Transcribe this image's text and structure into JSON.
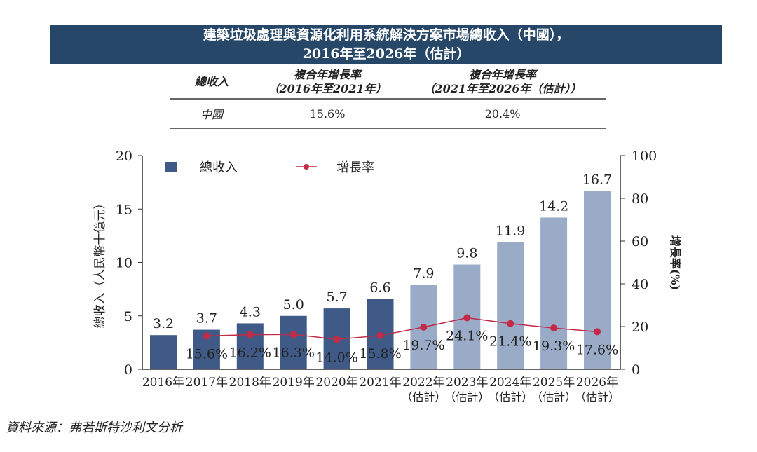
{
  "title_line1": "建築垃圾處理與資源化利用系統解決方案市場總收入（中國），",
  "title_line2": "2016年至2026年（估計）",
  "cagr_table": {
    "headers": [
      "總收入",
      "複合年增長率",
      "（2016年至2021年）",
      "複合年增長率",
      "（2021年至2026年（估計））"
    ],
    "row": {
      "label": "中國",
      "cagr_2016_2021": "15.6%",
      "cagr_2021_2026": "20.4%"
    }
  },
  "chart_data": {
    "type": "bar+line",
    "categories": [
      "2016年",
      "2017年",
      "2018年",
      "2019年",
      "2020年",
      "2021年",
      "2022年",
      "2023年",
      "2024年",
      "2025年",
      "2026年"
    ],
    "category_sublabels": [
      "",
      "",
      "",
      "",
      "",
      "",
      "（估計）",
      "（估計）",
      "（估計）",
      "（估計）",
      "（估計）"
    ],
    "series": [
      {
        "name": "總收入",
        "type": "bar",
        "axis": "left",
        "values": [
          3.2,
          3.7,
          4.3,
          5.0,
          5.7,
          6.6,
          7.9,
          9.8,
          11.9,
          14.2,
          16.7
        ],
        "labels": [
          "3.2",
          "3.7",
          "4.3",
          "5.0",
          "5.7",
          "6.6",
          "7.9",
          "9.8",
          "11.9",
          "14.2",
          "16.7"
        ]
      },
      {
        "name": "增長率",
        "type": "line",
        "axis": "right",
        "values": [
          null,
          15.6,
          16.2,
          16.3,
          14.0,
          15.8,
          19.7,
          24.1,
          21.4,
          19.3,
          17.6
        ],
        "labels": [
          "",
          "15.6%",
          "16.2%",
          "16.3%",
          "14.0%",
          "15.8%",
          "19.7%",
          "24.1%",
          "21.4%",
          "19.3%",
          "17.6%"
        ]
      }
    ],
    "ylabel": "總收入（人民幣十億元）",
    "y2label": "增長率(%)",
    "ylim": [
      0,
      20
    ],
    "yticks": [
      "0",
      "5",
      "10",
      "15",
      "20"
    ],
    "y2lim": [
      0,
      100
    ],
    "y2ticks": [
      "0",
      "20",
      "40",
      "60",
      "80",
      "100"
    ],
    "legend_position": "top-left",
    "colors": {
      "bar_actual": "#3f5a86",
      "bar_forecast": "#9aabc7",
      "line": "#c22a47"
    }
  },
  "source": "資料來源：弗若斯特沙利文分析"
}
